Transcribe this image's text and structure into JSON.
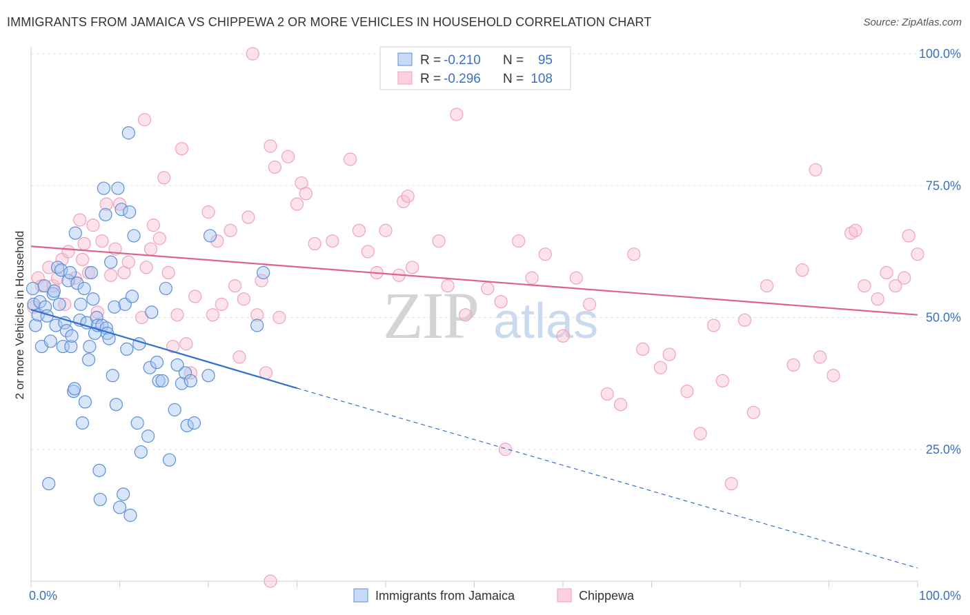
{
  "title": "IMMIGRANTS FROM JAMAICA VS CHIPPEWA 2 OR MORE VEHICLES IN HOUSEHOLD CORRELATION CHART",
  "source": "Source: ZipAtlas.com",
  "watermark": {
    "zip": "ZIP",
    "atlas": "atlas"
  },
  "colors": {
    "blue": "#5a8fd8",
    "blue_line": "#2f6fcf",
    "pink": "#f2a0bb",
    "pink_line": "#e0608d",
    "tick": "#3b6fc2"
  },
  "legend": {
    "r_label": "R =",
    "n_label": "N =",
    "rows": [
      {
        "r": "-0.210",
        "n": "95"
      },
      {
        "r": "-0.296",
        "n": "108"
      }
    ]
  },
  "chart_data": {
    "type": "scatter",
    "xlabel": "",
    "ylabel": "2 or more Vehicles in Household",
    "xlim": [
      0,
      100
    ],
    "ylim": [
      0,
      100
    ],
    "x_tick_labels": [
      "0.0%",
      "100.0%"
    ],
    "y_ticks": [
      25,
      50,
      75,
      100
    ],
    "y_tick_labels": [
      "25.0%",
      "50.0%",
      "75.0%",
      "100.0%"
    ],
    "grid": true,
    "legend_position": "bottom",
    "series": [
      {
        "name": "Immigrants from Jamaica",
        "color": "#5a8fd8",
        "trend": {
          "x": [
            0,
            30
          ],
          "y": [
            51.5,
            36.6
          ],
          "dashed_to": [
            100,
            2.5
          ]
        },
        "points": [
          [
            0.2,
            55.5
          ],
          [
            0.3,
            52.5
          ],
          [
            0.5,
            48.5
          ],
          [
            0.8,
            50.5
          ],
          [
            1.0,
            53.0
          ],
          [
            1.2,
            44.5
          ],
          [
            1.5,
            56.0
          ],
          [
            1.6,
            52.0
          ],
          [
            1.8,
            50.3
          ],
          [
            2.0,
            18.5
          ],
          [
            2.2,
            45.5
          ],
          [
            2.5,
            54.5
          ],
          [
            2.6,
            55.0
          ],
          [
            2.8,
            48.5
          ],
          [
            3.0,
            59.5
          ],
          [
            3.2,
            52.5
          ],
          [
            3.4,
            59.0
          ],
          [
            3.6,
            44.5
          ],
          [
            3.8,
            49.0
          ],
          [
            4.0,
            47.5
          ],
          [
            4.2,
            57.0
          ],
          [
            4.4,
            58.5
          ],
          [
            4.5,
            44.5
          ],
          [
            4.6,
            46.5
          ],
          [
            4.8,
            36.0
          ],
          [
            4.9,
            36.5
          ],
          [
            5.0,
            66.0
          ],
          [
            5.2,
            56.5
          ],
          [
            5.5,
            49.5
          ],
          [
            5.6,
            52.5
          ],
          [
            5.8,
            30.0
          ],
          [
            6.0,
            55.5
          ],
          [
            6.1,
            34.0
          ],
          [
            6.3,
            49.0
          ],
          [
            6.5,
            42.0
          ],
          [
            6.6,
            44.5
          ],
          [
            6.8,
            58.5
          ],
          [
            7.0,
            53.5
          ],
          [
            7.2,
            47.0
          ],
          [
            7.4,
            50.0
          ],
          [
            7.5,
            48.5
          ],
          [
            7.7,
            21.0
          ],
          [
            7.8,
            15.5
          ],
          [
            8.0,
            48.5
          ],
          [
            8.2,
            74.5
          ],
          [
            8.4,
            69.5
          ],
          [
            8.5,
            48.0
          ],
          [
            8.6,
            47.0
          ],
          [
            8.8,
            46.0
          ],
          [
            9.0,
            60.5
          ],
          [
            9.2,
            39.0
          ],
          [
            9.4,
            52.0
          ],
          [
            9.6,
            33.5
          ],
          [
            9.8,
            74.5
          ],
          [
            10.0,
            14.0
          ],
          [
            10.2,
            70.5
          ],
          [
            10.4,
            16.5
          ],
          [
            10.6,
            52.5
          ],
          [
            10.8,
            44.0
          ],
          [
            11.0,
            85.0
          ],
          [
            11.1,
            70.0
          ],
          [
            11.2,
            12.5
          ],
          [
            11.4,
            54.0
          ],
          [
            11.6,
            65.5
          ],
          [
            12.0,
            30.0
          ],
          [
            12.2,
            45.0
          ],
          [
            12.4,
            24.5
          ],
          [
            13.2,
            27.5
          ],
          [
            13.4,
            40.5
          ],
          [
            13.6,
            51.0
          ],
          [
            14.2,
            41.5
          ],
          [
            14.4,
            38.0
          ],
          [
            14.8,
            38.0
          ],
          [
            15.2,
            55.5
          ],
          [
            15.6,
            23.0
          ],
          [
            16.2,
            32.5
          ],
          [
            16.5,
            41.0
          ],
          [
            17.0,
            37.5
          ],
          [
            17.4,
            39.5
          ],
          [
            17.6,
            29.5
          ],
          [
            18.0,
            38.0
          ],
          [
            18.4,
            30.0
          ],
          [
            20.0,
            39.0
          ],
          [
            20.2,
            65.5
          ],
          [
            25.5,
            48.5
          ],
          [
            26.2,
            58.5
          ]
        ]
      },
      {
        "name": "Chippewa",
        "color": "#f2a0bb",
        "trend": {
          "x": [
            0,
            100
          ],
          "y": [
            63.5,
            50.5
          ]
        },
        "points": [
          [
            0.3,
            52.0
          ],
          [
            0.8,
            57.5
          ],
          [
            1.2,
            56.0
          ],
          [
            2.0,
            59.5
          ],
          [
            2.5,
            56.0
          ],
          [
            3.0,
            57.5
          ],
          [
            3.5,
            61.0
          ],
          [
            3.8,
            52.5
          ],
          [
            4.2,
            62.5
          ],
          [
            5.0,
            57.5
          ],
          [
            5.5,
            68.5
          ],
          [
            5.8,
            61.0
          ],
          [
            6.0,
            64.0
          ],
          [
            6.5,
            58.5
          ],
          [
            7.0,
            67.5
          ],
          [
            7.5,
            51.0
          ],
          [
            8.0,
            64.5
          ],
          [
            8.5,
            71.5
          ],
          [
            9.0,
            58.0
          ],
          [
            9.5,
            63.0
          ],
          [
            10.0,
            71.5
          ],
          [
            10.5,
            58.5
          ],
          [
            11.0,
            60.5
          ],
          [
            12.5,
            50.0
          ],
          [
            12.8,
            87.5
          ],
          [
            13.0,
            59.5
          ],
          [
            13.5,
            63.0
          ],
          [
            13.8,
            67.5
          ],
          [
            14.5,
            65.0
          ],
          [
            15.0,
            76.5
          ],
          [
            15.5,
            58.5
          ],
          [
            16.0,
            44.5
          ],
          [
            16.5,
            50.5
          ],
          [
            17.0,
            82.0
          ],
          [
            17.5,
            45.0
          ],
          [
            18.0,
            39.5
          ],
          [
            18.5,
            54.0
          ],
          [
            20.0,
            70.0
          ],
          [
            20.5,
            50.5
          ],
          [
            21.0,
            64.5
          ],
          [
            21.5,
            52.5
          ],
          [
            22.5,
            66.5
          ],
          [
            23.0,
            56.0
          ],
          [
            23.5,
            42.5
          ],
          [
            24.0,
            53.5
          ],
          [
            24.5,
            69.0
          ],
          [
            25.5,
            50.5
          ],
          [
            26.0,
            57.0
          ],
          [
            26.5,
            39.5
          ],
          [
            27.0,
            82.5
          ],
          [
            27.5,
            78.5
          ],
          [
            28.0,
            50.0
          ],
          [
            29.0,
            80.5
          ],
          [
            30.0,
            71.5
          ],
          [
            30.5,
            75.5
          ],
          [
            31.0,
            73.5
          ],
          [
            32.0,
            64.0
          ],
          [
            34.0,
            64.5
          ],
          [
            36.0,
            80.0
          ],
          [
            37.0,
            66.5
          ],
          [
            38.0,
            62.5
          ],
          [
            39.0,
            58.5
          ],
          [
            40.0,
            66.5
          ],
          [
            41.5,
            58.0
          ],
          [
            42.0,
            72.0
          ],
          [
            42.5,
            73.0
          ],
          [
            43.0,
            59.5
          ],
          [
            46.0,
            64.5
          ],
          [
            47.0,
            56.0
          ],
          [
            48.0,
            88.5
          ],
          [
            49.0,
            50.5
          ],
          [
            51.5,
            55.5
          ],
          [
            53.0,
            53.0
          ],
          [
            53.5,
            25.0
          ],
          [
            55.0,
            64.5
          ],
          [
            56.5,
            57.5
          ],
          [
            58.0,
            62.0
          ],
          [
            60.0,
            46.5
          ],
          [
            61.5,
            57.5
          ],
          [
            63.0,
            52.5
          ],
          [
            65.0,
            35.5
          ],
          [
            66.5,
            33.5
          ],
          [
            68.0,
            62.0
          ],
          [
            69.0,
            44.0
          ],
          [
            71.0,
            40.5
          ],
          [
            72.0,
            43.0
          ],
          [
            74.0,
            36.0
          ],
          [
            75.5,
            28.0
          ],
          [
            77.0,
            48.5
          ],
          [
            78.0,
            38.0
          ],
          [
            79.0,
            18.5
          ],
          [
            80.5,
            49.5
          ],
          [
            81.5,
            32.0
          ],
          [
            83.0,
            56.0
          ],
          [
            86.0,
            41.0
          ],
          [
            87.0,
            59.0
          ],
          [
            88.5,
            78.0
          ],
          [
            89.0,
            42.5
          ],
          [
            90.5,
            39.0
          ],
          [
            92.5,
            66.0
          ],
          [
            93.0,
            66.5
          ],
          [
            94.0,
            56.0
          ],
          [
            95.5,
            53.5
          ],
          [
            96.5,
            58.5
          ],
          [
            97.5,
            56.0
          ],
          [
            98.5,
            57.5
          ],
          [
            99.0,
            65.5
          ],
          [
            100.0,
            62.0
          ],
          [
            27.0,
            0.0
          ],
          [
            25.0,
            100.0
          ]
        ]
      }
    ]
  }
}
